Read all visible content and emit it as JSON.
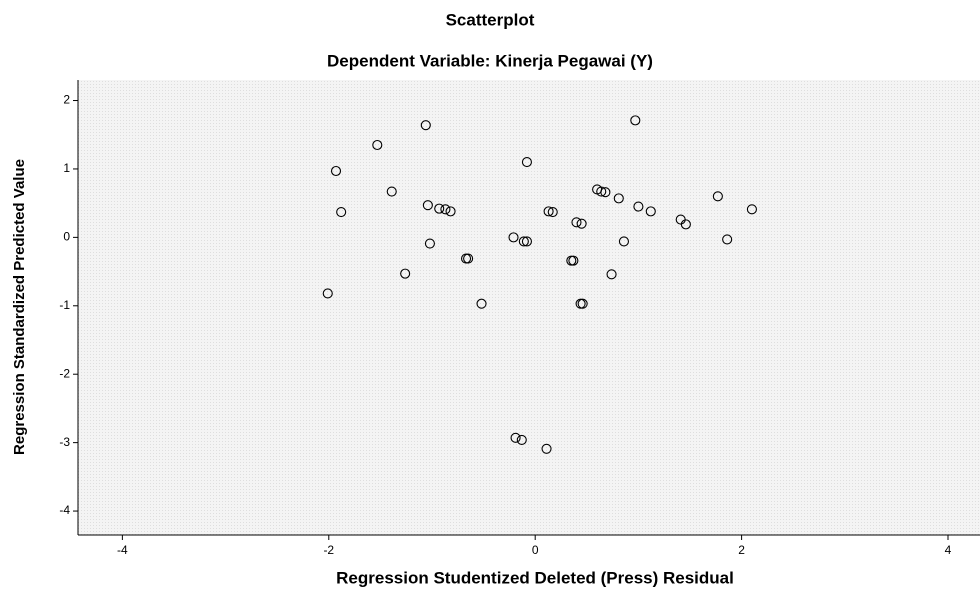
{
  "chart_data": {
    "type": "scatter",
    "title": "Scatterplot",
    "subtitle": "Dependent Variable: Kinerja Pegawai (Y)",
    "x_label": "Regression Studentized Deleted (Press) Residual",
    "y_label": "Regression Standardized Predicted Value",
    "x": [
      -1.06,
      0.97,
      -1.53,
      -0.08,
      -1.93,
      -1.39,
      0.6,
      0.64,
      0.68,
      0.81,
      1.77,
      -1.88,
      -1.04,
      -0.93,
      -0.87,
      -0.82,
      1.0,
      0.13,
      0.17,
      1.12,
      1.41,
      1.46,
      2.1,
      0.4,
      0.45,
      -0.21,
      -0.11,
      -0.08,
      -1.02,
      0.86,
      1.86,
      -0.67,
      -0.65,
      0.35,
      0.37,
      -1.26,
      0.74,
      -2.01,
      -0.52,
      0.44,
      0.46,
      -0.19,
      -0.13,
      0.11
    ],
    "y": [
      1.64,
      1.71,
      1.35,
      1.1,
      0.97,
      0.67,
      0.7,
      0.67,
      0.66,
      0.57,
      0.6,
      0.37,
      0.47,
      0.42,
      0.41,
      0.38,
      0.45,
      0.38,
      0.37,
      0.38,
      0.26,
      0.19,
      0.41,
      0.22,
      0.2,
      0.0,
      -0.06,
      -0.06,
      -0.09,
      -0.06,
      -0.03,
      -0.31,
      -0.31,
      -0.34,
      -0.34,
      -0.53,
      -0.54,
      -0.82,
      -0.97,
      -0.97,
      -0.97,
      -2.93,
      -2.96,
      -3.09
    ],
    "color": "#000000",
    "xlim": [
      -4.43,
      4.31
    ],
    "xticks": [
      -4,
      -2,
      0,
      2,
      4
    ],
    "ylim": [
      -4.35,
      2.3
    ],
    "yticks": [
      -4,
      -3,
      -2,
      -1,
      0,
      1,
      2
    ]
  }
}
